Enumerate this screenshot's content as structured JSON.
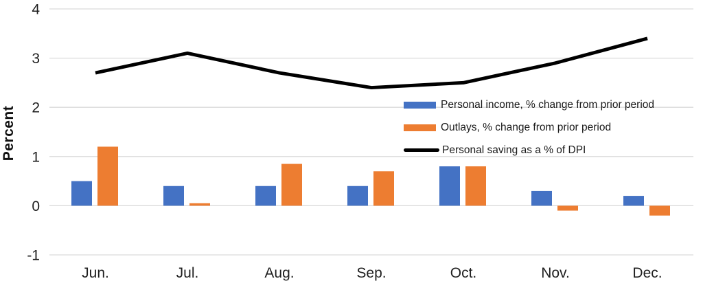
{
  "chart_data": {
    "type": "combo",
    "title": "",
    "xlabel": "",
    "ylabel": "Percent",
    "categories": [
      "Jun.",
      "Jul.",
      "Aug.",
      "Sep.",
      "Oct.",
      "Nov.",
      "Dec."
    ],
    "yticks": [
      4,
      3,
      2,
      1,
      0,
      -1
    ],
    "ylim": [
      -1,
      4
    ],
    "grid": true,
    "legend_position": "center-right",
    "series": [
      {
        "name": "Personal income, % change from prior period",
        "type": "bar",
        "color": "#4472C4",
        "values": [
          0.5,
          0.4,
          0.4,
          0.4,
          0.8,
          0.3,
          0.2
        ]
      },
      {
        "name": "Outlays, % change from prior period",
        "type": "bar",
        "color": "#ED7D31",
        "values": [
          1.2,
          0.05,
          0.85,
          0.7,
          0.8,
          -0.1,
          -0.2
        ]
      },
      {
        "name": "Personal saving as a % of DPI",
        "type": "line",
        "color": "#000000",
        "values": [
          2.7,
          3.1,
          2.7,
          2.4,
          2.5,
          2.9,
          3.4
        ]
      }
    ]
  },
  "colors": {
    "gridline": "#d9d9d9",
    "axis_text": "#1f1f1f",
    "background": "#ffffff"
  }
}
